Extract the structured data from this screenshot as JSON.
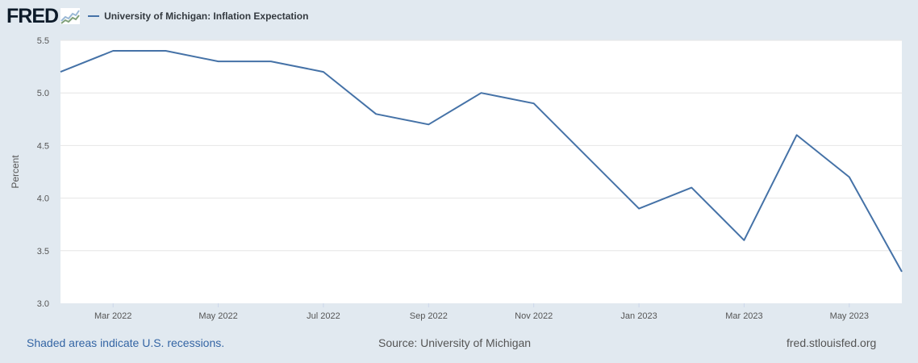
{
  "header": {
    "logo_text": "FRED",
    "logo_icon": "chart-trend-icon"
  },
  "colors": {
    "series": "#4572a7",
    "plot_bg": "#ffffff",
    "page_bg": "#e1e9f0",
    "grid": "#e6e6e6"
  },
  "chart_data": {
    "type": "line",
    "title": "",
    "xlabel": "",
    "ylabel": "Percent",
    "ylim": [
      3.0,
      5.5
    ],
    "yticks": [
      "3.0",
      "3.5",
      "4.0",
      "4.5",
      "5.0",
      "5.5"
    ],
    "xlim": [
      "2022-02",
      "2023-06"
    ],
    "xticks": [
      {
        "date": "2022-03",
        "label": "Mar 2022"
      },
      {
        "date": "2022-05",
        "label": "May 2022"
      },
      {
        "date": "2022-07",
        "label": "Jul 2022"
      },
      {
        "date": "2022-09",
        "label": "Sep 2022"
      },
      {
        "date": "2022-11",
        "label": "Nov 2022"
      },
      {
        "date": "2023-01",
        "label": "Jan 2023"
      },
      {
        "date": "2023-03",
        "label": "Mar 2023"
      },
      {
        "date": "2023-05",
        "label": "May 2023"
      }
    ],
    "grid": true,
    "legend": "top-left",
    "series": [
      {
        "name": "University of Michigan: Inflation Expectation",
        "x": [
          "2022-02",
          "2022-03",
          "2022-04",
          "2022-05",
          "2022-06",
          "2022-07",
          "2022-08",
          "2022-09",
          "2022-10",
          "2022-11",
          "2022-12",
          "2023-01",
          "2023-02",
          "2023-03",
          "2023-04",
          "2023-05",
          "2023-06"
        ],
        "values": [
          5.2,
          5.4,
          5.4,
          5.3,
          5.3,
          5.2,
          4.8,
          4.7,
          5.0,
          4.9,
          4.4,
          3.9,
          4.1,
          3.6,
          4.6,
          4.2,
          3.3
        ]
      }
    ]
  },
  "footer": {
    "recession_note": "Shaded areas indicate U.S. recessions.",
    "source": "Source: University of Michigan",
    "site": "fred.stlouisfed.org"
  }
}
